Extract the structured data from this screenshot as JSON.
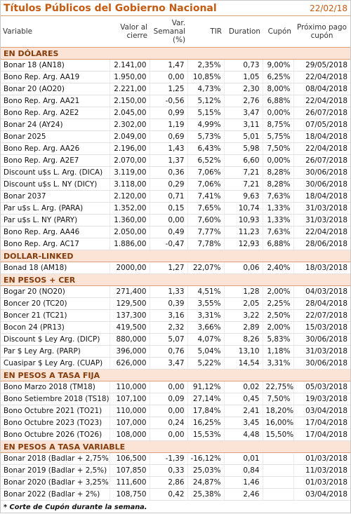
{
  "header": {
    "title": "Títulos Públicos del Gobierno Nacional",
    "date": "22/02/18"
  },
  "table": {
    "columns": [
      "Variable",
      "Valor al cierre",
      "Var. Semanal (%)",
      "TIR",
      "Duration",
      "Cupón",
      "Próximo pago cupón"
    ],
    "sections": [
      {
        "name": "EN DÓLARES",
        "rows": [
          [
            "Bonar 18 (AN18)",
            "2.141,00",
            "1,47",
            "2,35%",
            "0,73",
            "9,00%",
            "29/05/2018"
          ],
          [
            "Bono Rep. Arg. AA19",
            "1.950,00",
            "0,00",
            "10,85%",
            "1,05",
            "6,25%",
            "22/04/2018"
          ],
          [
            "Bonar 20 (AO20)",
            "2.221,00",
            "1,25",
            "4,73%",
            "2,30",
            "8,00%",
            "08/04/2018"
          ],
          [
            "Bono Rep. Arg. AA21",
            "2.150,00",
            "-0,56",
            "5,12%",
            "2,76",
            "6,88%",
            "22/04/2018"
          ],
          [
            "Bono Rep. Arg. A2E2",
            "2.045,00",
            "0,99",
            "5,15%",
            "3,47",
            "0,00%",
            "26/07/2018"
          ],
          [
            "Bonar 24 (AY24)",
            "2.302,00",
            "1,19",
            "4,99%",
            "3,11",
            "8,75%",
            "07/05/2018"
          ],
          [
            "Bonar 2025",
            "2.049,00",
            "0,69",
            "5,73%",
            "5,01",
            "5,75%",
            "18/04/2018"
          ],
          [
            "Bono Rep. Arg. AA26",
            "2.196,00",
            "1,43",
            "6,43%",
            "5,98",
            "7,50%",
            "22/04/2018"
          ],
          [
            "Bono Rep. Arg. A2E7",
            "2.070,00",
            "1,37",
            "6,52%",
            "6,60",
            "0,00%",
            "26/07/2018"
          ],
          [
            "Discount u$s L. Arg. (DICA)",
            "3.119,00",
            "0,36",
            "7,06%",
            "7,21",
            "8,28%",
            "30/06/2018"
          ],
          [
            "Discount u$s L. NY (DICY)",
            "3.118,00",
            "0,29",
            "7,06%",
            "7,21",
            "8,28%",
            "30/06/2018"
          ],
          [
            "Bonar 2037",
            "2.120,00",
            "0,71",
            "7,41%",
            "9,63",
            "7,63%",
            "18/04/2018"
          ],
          [
            "Par u$s L. Arg. (PARA)",
            "1.352,00",
            "0,15",
            "7,65%",
            "10,74",
            "1,33%",
            "31/03/2018"
          ],
          [
            "Par u$s L. NY (PARY)",
            "1.360,00",
            "0,00",
            "7,60%",
            "10,93",
            "1,33%",
            "31/03/2018"
          ],
          [
            "Bono Rep. Arg. AA46",
            "2.050,00",
            "0,49",
            "7,77%",
            "11,23",
            "7,63%",
            "22/04/2018"
          ],
          [
            "Bono Rep. Arg. AC17",
            "1.886,00",
            "-0,47",
            "7,78%",
            "12,93",
            "6,88%",
            "28/06/2018"
          ]
        ]
      },
      {
        "name": "DOLLAR-LINKED",
        "rows": [
          [
            "Bonad 18 (AM18)",
            "2000,00",
            "1,27",
            "22,07%",
            "0,06",
            "2,40%",
            "18/03/2018"
          ]
        ]
      },
      {
        "name": "EN PESOS + CER",
        "rows": [
          [
            "Bogar 20 (NO20)",
            "271,400",
            "1,33",
            "4,51%",
            "1,28",
            "2,00%",
            "04/03/2018"
          ],
          [
            "Boncer 20 (TC20)",
            "129,500",
            "0,39",
            "3,55%",
            "2,05",
            "2,25%",
            "28/04/2018"
          ],
          [
            "Boncer 21 (TC21)",
            "137,300",
            "3,16",
            "3,31%",
            "3,22",
            "2,50%",
            "22/07/2018"
          ],
          [
            "Bocon 24 (PR13)",
            "419,500",
            "2,32",
            "3,66%",
            "2,89",
            "2,00%",
            "15/03/2018"
          ],
          [
            "Discount $ Ley Arg. (DICP)",
            "880,000",
            "5,07",
            "4,07%",
            "8,26",
            "5,83%",
            "30/06/2018"
          ],
          [
            "Par $ Ley Arg. (PARP)",
            "396,000",
            "0,76",
            "5,04%",
            "13,10",
            "1,18%",
            "31/03/2018"
          ],
          [
            "Cuasipar $ Ley Arg. (CUAP)",
            "626,000",
            "3,47",
            "5,22%",
            "14,54",
            "3,31%",
            "30/06/2018"
          ]
        ]
      },
      {
        "name": "EN PESOS A TASA FIJA",
        "rows": [
          [
            "Bono Marzo 2018 (TM18)",
            "110,000",
            "0,00",
            "91,12%",
            "0,02",
            "22,75%",
            "05/03/2018"
          ],
          [
            "Bono Setiembre 2018 (TS18)",
            "107,100",
            "0,09",
            "27,14%",
            "0,45",
            "7,50%",
            "19/03/2018"
          ],
          [
            "Bono Octubre 2021 (TO21)",
            "110,000",
            "0,00",
            "17,84%",
            "2,41",
            "18,20%",
            "03/04/2018"
          ],
          [
            "Bono Octubre 2023 (TO23)",
            "107,000",
            "0,24",
            "16,25%",
            "3,45",
            "16,00%",
            "17/04/2018"
          ],
          [
            "Bono Octubre 2026 (TO26)",
            "108,000",
            "0,00",
            "15,53%",
            "4,48",
            "15,50%",
            "17/04/2018"
          ]
        ]
      },
      {
        "name": "EN PESOS A TASA VARIABLE",
        "rows": [
          [
            "Bonar 2018 (Badlar + 2,75%)",
            "106,500",
            "-1,39",
            "-16,12%",
            "0,01",
            null,
            "01/03/2018"
          ],
          [
            "Bonar 2019 (Badlar + 2,5%)",
            "107,850",
            "0,33",
            "25,03%",
            "0,84",
            null,
            "11/03/2018"
          ],
          [
            "Bonar 2020 (Badlar + 3,25%)",
            "111,600",
            "2,86",
            "24,87%",
            "1,46",
            null,
            "01/03/2018"
          ],
          [
            "Bonar 2022 (Badlar + 2%)",
            "108,750",
            "0,42",
            "25,38%",
            "2,46",
            null,
            "03/04/2018"
          ]
        ]
      }
    ]
  },
  "footnote": "* Corte de Cupón durante la semana."
}
